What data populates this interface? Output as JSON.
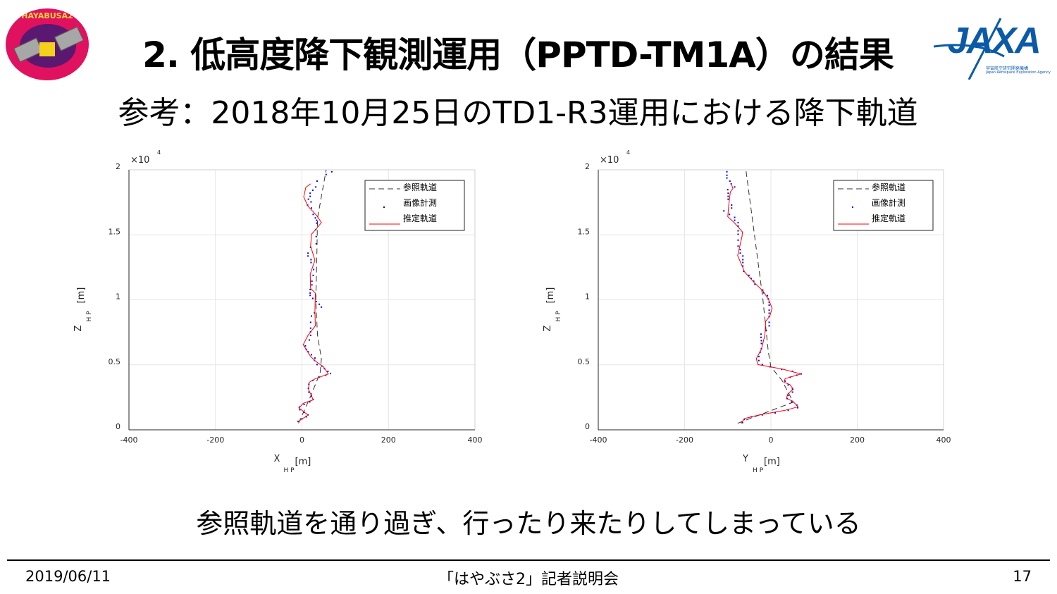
{
  "header": {
    "title": "2. 低高度降下観測運用（PPTD-TM1A）の結果",
    "subtitle": "参考：2018年10月25日のTD1-R3運用における降下軌道",
    "logo_left": {
      "text": "HAYABUSA2",
      "icon": "hayabusa2-mission-logo"
    },
    "logo_right": {
      "text": "JAXA",
      "sub": "宇宙航空研究開発機構",
      "sub_en": "Japan Aerospace Exploration Agency"
    }
  },
  "remark": "参照軌道を通り過ぎ、行ったり来たりしてしまっている",
  "footer": {
    "date": "2019/06/11",
    "center": "「はやぶさ2」記者説明会",
    "page": "17"
  },
  "colors": {
    "reference": "#000000",
    "measured": "#0000ff",
    "estimated": "#ff0000",
    "grid": "#e6e6e6"
  },
  "chart_data": [
    {
      "type": "line",
      "xlabel": "X",
      "xlabel_sub": "HP",
      "xlabel_unit": "[m]",
      "ylabel": "Z",
      "ylabel_sub": "HP",
      "ylabel_unit": "[m]",
      "xlim": [
        -400,
        400
      ],
      "ylim": [
        0,
        20000
      ],
      "xticks": [
        "-400",
        "-200",
        "0",
        "200",
        "400"
      ],
      "yticks": [
        "0",
        "0.5",
        "1",
        "1.5",
        "2"
      ],
      "yexponent": "×10",
      "yexponent_power": "4",
      "grid": true,
      "legend_position": "top-right",
      "series": [
        {
          "name": "参照軌道",
          "style": "dashed",
          "color": "#000000",
          "points": [
            [
              -8,
              505
            ],
            [
              20,
              2580
            ],
            [
              42,
              4390
            ],
            [
              45,
              5470
            ],
            [
              36,
              7270
            ],
            [
              32,
              9980
            ],
            [
              34,
              12690
            ],
            [
              36,
              16300
            ],
            [
              56,
              20000
            ]
          ]
        },
        {
          "name": "画像計測",
          "style": "dots",
          "color": "#0000ff",
          "points": [
            [
              -9,
              650
            ],
            [
              0,
              850
            ],
            [
              10,
              1000
            ],
            [
              14,
              1150
            ],
            [
              5,
              1350
            ],
            [
              -5,
              1550
            ],
            [
              -6,
              1750
            ],
            [
              5,
              1950
            ],
            [
              18,
              2150
            ],
            [
              26,
              2330
            ],
            [
              22,
              2600
            ],
            [
              16,
              2900
            ],
            [
              15,
              3200
            ],
            [
              16,
              3500
            ],
            [
              25,
              3800
            ],
            [
              40,
              4050
            ],
            [
              55,
              4200
            ],
            [
              66,
              4330
            ],
            [
              60,
              4500
            ],
            [
              52,
              4700
            ],
            [
              46,
              4900
            ],
            [
              35,
              5020
            ],
            [
              29,
              5340
            ],
            [
              30,
              5520
            ],
            [
              22,
              5780
            ],
            [
              14,
              6010
            ],
            [
              10,
              6190
            ],
            [
              8,
              6460
            ],
            [
              17,
              6910
            ],
            [
              20,
              7270
            ],
            [
              20,
              7540
            ],
            [
              20,
              7820
            ],
            [
              20,
              8270
            ],
            [
              22,
              8750
            ],
            [
              29,
              8990
            ],
            [
              45,
              9440
            ],
            [
              40,
              9660
            ],
            [
              33,
              9860
            ],
            [
              25,
              10110
            ],
            [
              19,
              10340
            ],
            [
              19,
              10520
            ],
            [
              19,
              10790
            ],
            [
              23,
              11150
            ],
            [
              23,
              11430
            ],
            [
              26,
              11880
            ],
            [
              27,
              12330
            ],
            [
              21,
              12870
            ],
            [
              21,
              13090
            ],
            [
              14,
              13370
            ],
            [
              14,
              13590
            ],
            [
              20,
              14040
            ],
            [
              33,
              14310
            ],
            [
              33,
              14860
            ],
            [
              32,
              15400
            ],
            [
              34,
              15900
            ],
            [
              34,
              16120
            ],
            [
              31,
              16300
            ],
            [
              26,
              16570
            ],
            [
              22,
              17060
            ],
            [
              13,
              17290
            ],
            [
              21,
              17530
            ],
            [
              15,
              17740
            ],
            [
              19,
              17960
            ],
            [
              19,
              18200
            ],
            [
              25,
              18430
            ],
            [
              32,
              18680
            ],
            [
              35,
              19130
            ],
            [
              56,
              19640
            ],
            [
              69,
              19850
            ]
          ]
        },
        {
          "name": "推定軌道",
          "style": "solid",
          "color": "#ff0000",
          "points": [
            [
              -10.5,
              596
            ],
            [
              14,
              1137
            ],
            [
              -7,
              1679
            ],
            [
              3,
              2040
            ],
            [
              26,
              2310
            ],
            [
              20,
              2760
            ],
            [
              15,
              3120
            ],
            [
              17,
              3660
            ],
            [
              31,
              3935
            ],
            [
              61,
              4300
            ],
            [
              50,
              4840
            ],
            [
              31,
              5290
            ],
            [
              20,
              5650
            ],
            [
              3,
              6550
            ],
            [
              14,
              7270
            ],
            [
              31,
              8000
            ],
            [
              30,
              9080
            ],
            [
              31,
              10520
            ],
            [
              20,
              10880
            ],
            [
              19,
              11970
            ],
            [
              30,
              13050
            ],
            [
              20,
              14130
            ],
            [
              22,
              15040
            ],
            [
              34,
              15490
            ],
            [
              45,
              15940
            ],
            [
              34,
              16480
            ],
            [
              14,
              17200
            ],
            [
              4,
              17920
            ],
            [
              9,
              18650
            ],
            [
              20,
              18920
            ]
          ]
        }
      ]
    },
    {
      "type": "line",
      "xlabel": "Y",
      "xlabel_sub": "HP",
      "xlabel_unit": "[m]",
      "ylabel": "Z",
      "ylabel_sub": "HP",
      "ylabel_unit": "[m]",
      "xlim": [
        -400,
        400
      ],
      "ylim": [
        0,
        20000
      ],
      "xticks": [
        "-400",
        "-200",
        "0",
        "200",
        "400"
      ],
      "yticks": [
        "0",
        "0.5",
        "1",
        "1.5",
        "2"
      ],
      "yexponent": "×10",
      "yexponent_power": "4",
      "grid": true,
      "legend_position": "top-right",
      "series": [
        {
          "name": "参照軌道",
          "style": "dashed",
          "color": "#000000",
          "points": [
            [
              -77,
              505
            ],
            [
              52,
              2130
            ],
            [
              25,
              3840
            ],
            [
              0,
              4840
            ],
            [
              -6,
              6010
            ],
            [
              -19,
              10160
            ],
            [
              -58,
              20000
            ]
          ]
        },
        {
          "name": "画像計測",
          "style": "dots",
          "color": "#0000ff",
          "points": [
            [
              -66,
              550
            ],
            [
              -62,
              800
            ],
            [
              -45,
              1000
            ],
            [
              -20,
              1150
            ],
            [
              10,
              1300
            ],
            [
              40,
              1500
            ],
            [
              62,
              1700
            ],
            [
              60,
              1900
            ],
            [
              48,
              2150
            ],
            [
              38,
              2400
            ],
            [
              40,
              2650
            ],
            [
              50,
              2900
            ],
            [
              50,
              3150
            ],
            [
              40,
              3450
            ],
            [
              33,
              3750
            ],
            [
              45,
              4050
            ],
            [
              60,
              4200
            ],
            [
              70,
              4300
            ],
            [
              50,
              4500
            ],
            [
              25,
              4650
            ],
            [
              -2,
              4850
            ],
            [
              -20,
              5020
            ],
            [
              -28,
              5330
            ],
            [
              -28,
              5640
            ],
            [
              -25,
              5970
            ],
            [
              -22,
              6240
            ],
            [
              -22,
              6640
            ],
            [
              -22,
              6860
            ],
            [
              -23,
              7110
            ],
            [
              -23,
              7360
            ],
            [
              -11,
              7630
            ],
            [
              -4,
              8000
            ],
            [
              -4,
              8270
            ],
            [
              -4,
              8720
            ],
            [
              -4,
              8970
            ],
            [
              -4,
              9200
            ],
            [
              -4,
              9590
            ],
            [
              -4,
              9820
            ],
            [
              -6,
              10070
            ],
            [
              -8,
              10320
            ],
            [
              -17,
              10540
            ],
            [
              -19,
              10750
            ],
            [
              -37,
              11200
            ],
            [
              -40,
              11430
            ],
            [
              -46,
              11650
            ],
            [
              -51,
              11880
            ],
            [
              -63,
              12190
            ],
            [
              -65,
              12600
            ],
            [
              -65,
              12870
            ],
            [
              -65,
              13090
            ],
            [
              -65,
              13370
            ],
            [
              -71,
              13590
            ],
            [
              -71,
              13860
            ],
            [
              -76,
              14130
            ],
            [
              -76,
              14590
            ],
            [
              -76,
              15040
            ],
            [
              -76,
              15310
            ],
            [
              -76,
              15670
            ],
            [
              -76,
              15940
            ],
            [
              -84,
              16120
            ],
            [
              -84,
              16340
            ],
            [
              -96,
              16570
            ],
            [
              -109,
              16840
            ],
            [
              -91,
              17060
            ],
            [
              -91,
              17290
            ],
            [
              -99,
              17740
            ],
            [
              -99,
              17960
            ],
            [
              -99,
              18200
            ],
            [
              -100,
              18470
            ],
            [
              -84,
              18680
            ],
            [
              -92,
              18920
            ],
            [
              -95,
              19130
            ],
            [
              -102,
              19370
            ],
            [
              -102,
              19580
            ],
            [
              -102,
              19850
            ]
          ]
        },
        {
          "name": "推定軌道",
          "style": "solid",
          "color": "#ff0000",
          "points": [
            [
              -69,
              505
            ],
            [
              -61,
              866
            ],
            [
              -28,
              1137
            ],
            [
              33,
              1500
            ],
            [
              63,
              1770
            ],
            [
              50,
              2220
            ],
            [
              36,
              2400
            ],
            [
              39,
              2760
            ],
            [
              52,
              3120
            ],
            [
              44,
              3480
            ],
            [
              30,
              3660
            ],
            [
              33,
              3935
            ],
            [
              69,
              4300
            ],
            [
              28,
              4660
            ],
            [
              0,
              4840
            ],
            [
              -30,
              5020
            ],
            [
              -34,
              5470
            ],
            [
              -22,
              6190
            ],
            [
              -14,
              7270
            ],
            [
              -12,
              8360
            ],
            [
              -3,
              8720
            ],
            [
              3,
              9350
            ],
            [
              -6,
              10070
            ],
            [
              -19,
              10700
            ],
            [
              -39,
              11340
            ],
            [
              -61,
              12150
            ],
            [
              -77,
              13410
            ],
            [
              -67,
              14860
            ],
            [
              -66,
              15220
            ],
            [
              -85,
              15940
            ],
            [
              -100,
              16390
            ],
            [
              -98,
              17200
            ],
            [
              -94,
              18290
            ],
            [
              -88,
              18560
            ],
            [
              -91,
              18830
            ]
          ]
        }
      ]
    }
  ]
}
